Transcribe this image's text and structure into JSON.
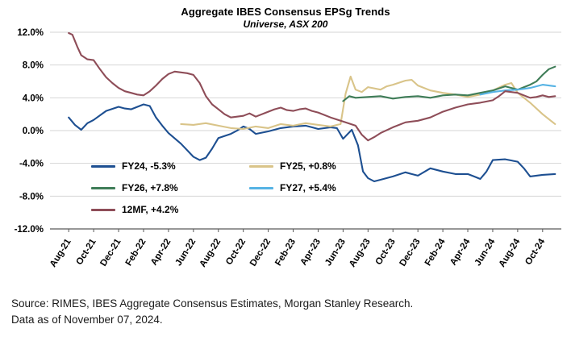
{
  "chart_data": {
    "type": "line",
    "title": "Aggregate IBES Consensus EPSg Trends",
    "subtitle": "Universe, ASX 200",
    "x_unit": "months since Aug-2021",
    "x_tick_positions": [
      0,
      2,
      4,
      6,
      8,
      10,
      12,
      14,
      16,
      18,
      20,
      22,
      24,
      26,
      28,
      30,
      32,
      34,
      36,
      38
    ],
    "x_tick_labels": [
      "Aug-21",
      "Oct-21",
      "Dec-21",
      "Feb-22",
      "Apr-22",
      "Jun-22",
      "Aug-22",
      "Oct-22",
      "Dec-22",
      "Feb-23",
      "Apr-23",
      "Jun-23",
      "Aug-23",
      "Oct-23",
      "Dec-23",
      "Feb-24",
      "Apr-24",
      "Jun-24",
      "Aug-24",
      "Oct-24"
    ],
    "ylim": [
      -12,
      12
    ],
    "y_ticks": [
      12,
      8,
      4,
      0,
      -4,
      -8,
      -12
    ],
    "y_tick_labels": [
      "12.0%",
      "8.0%",
      "4.0%",
      "0.0%",
      "-4.0%",
      "-8.0%",
      "-12.0%"
    ],
    "grid": "horizontal gridlines, light gray",
    "legend_position": "inside plot, lower-left, two columns",
    "series": [
      {
        "name": "FY24",
        "legend_label": "FY24, -5.3%",
        "last_value_pct": -5.3,
        "color": "#1d4f91",
        "x": [
          0,
          0.5,
          1,
          1.5,
          2,
          3,
          4,
          4.5,
          5,
          6,
          6.5,
          7,
          7.5,
          8,
          9,
          10,
          10.5,
          11,
          11.5,
          12,
          13,
          13.5,
          14,
          14.5,
          15,
          16,
          17,
          18,
          19,
          19.5,
          20,
          21,
          21.5,
          22,
          22.7,
          23.2,
          23.6,
          24,
          24.5,
          25,
          26,
          27,
          27.5,
          28,
          29,
          30,
          31,
          32,
          32.5,
          33,
          33.5,
          34,
          35,
          36,
          36.5,
          37,
          38,
          39
        ],
        "y": [
          1.6,
          0.7,
          0.1,
          0.9,
          1.3,
          2.4,
          2.9,
          2.7,
          2.6,
          3.2,
          3.0,
          1.6,
          0.6,
          -0.3,
          -1.6,
          -3.2,
          -3.6,
          -3.3,
          -2.2,
          -0.9,
          -0.4,
          0.0,
          0.5,
          0.2,
          -0.4,
          -0.1,
          0.3,
          0.5,
          0.6,
          0.4,
          0.2,
          0.4,
          0.3,
          -1.0,
          0.1,
          -1.8,
          -5.0,
          -5.8,
          -6.2,
          -6.0,
          -5.6,
          -5.1,
          -5.3,
          -5.5,
          -4.6,
          -5.0,
          -5.3,
          -5.3,
          -5.6,
          -5.9,
          -5.0,
          -3.6,
          -3.5,
          -3.8,
          -4.6,
          -5.6,
          -5.4,
          -5.3
        ]
      },
      {
        "name": "FY25",
        "legend_label": "FY25, +0.8%",
        "last_value_pct": 0.8,
        "color": "#d9c489",
        "x": [
          9,
          10,
          11,
          12,
          13,
          14,
          15,
          16,
          17,
          18,
          19,
          20,
          21,
          21.8,
          22.2,
          22.6,
          23,
          23.5,
          24,
          25,
          25.5,
          26,
          27,
          27.5,
          28,
          29,
          30,
          31,
          32,
          33,
          34,
          35,
          35.5,
          36,
          37,
          38,
          38.5,
          39
        ],
        "y": [
          0.8,
          0.7,
          0.9,
          0.6,
          0.3,
          0.2,
          0.5,
          0.3,
          0.8,
          0.6,
          0.9,
          0.7,
          0.5,
          0.8,
          4.5,
          6.6,
          5.0,
          4.7,
          5.3,
          5.0,
          5.4,
          5.6,
          6.1,
          6.2,
          5.5,
          4.9,
          4.6,
          4.4,
          4.1,
          4.4,
          4.9,
          5.6,
          5.8,
          4.6,
          3.4,
          2.0,
          1.4,
          0.8
        ]
      },
      {
        "name": "FY26",
        "legend_label": "FY26, +7.8%",
        "last_value_pct": 7.8,
        "color": "#3f7d58",
        "x": [
          22,
          22.5,
          23,
          24,
          25,
          26,
          27,
          28,
          29,
          30,
          31,
          32,
          33,
          34,
          35,
          35.5,
          36,
          37,
          37.5,
          38,
          38.5,
          39
        ],
        "y": [
          3.6,
          4.2,
          4.0,
          4.1,
          4.2,
          3.9,
          4.1,
          4.2,
          4.0,
          4.3,
          4.4,
          4.3,
          4.6,
          4.9,
          5.4,
          5.2,
          5.0,
          5.6,
          6.0,
          6.8,
          7.5,
          7.8
        ]
      },
      {
        "name": "FY27",
        "legend_label": "FY27, +5.4%",
        "last_value_pct": 5.4,
        "color": "#56b3e4",
        "x": [
          33,
          34,
          35,
          36,
          36.5,
          37,
          37.5,
          38,
          38.5,
          39
        ],
        "y": [
          4.4,
          4.7,
          4.9,
          5.0,
          5.1,
          5.2,
          5.4,
          5.6,
          5.5,
          5.4
        ]
      },
      {
        "name": "12MF",
        "legend_label": "12MF, +4.2%",
        "last_value_pct": 4.2,
        "color": "#8e4d58",
        "x": [
          0,
          0.3,
          0.7,
          1,
          1.5,
          2,
          2.5,
          3,
          3.5,
          4,
          4.5,
          5,
          5.5,
          6,
          6.5,
          7,
          7.5,
          8,
          8.5,
          9,
          9.5,
          10,
          10.5,
          11,
          11.5,
          12,
          12.5,
          13,
          14,
          14.5,
          15,
          16,
          16.5,
          17,
          17.5,
          18,
          18.5,
          19,
          19.5,
          20,
          21,
          22,
          23,
          23.5,
          24,
          24.5,
          25,
          26,
          27,
          28,
          29,
          30,
          31,
          32,
          33,
          34,
          34.5,
          35,
          35.5,
          36,
          36.5,
          37,
          37.5,
          38,
          38.5,
          39
        ],
        "y": [
          11.9,
          11.7,
          10.2,
          9.2,
          8.7,
          8.6,
          7.5,
          6.5,
          5.8,
          5.2,
          4.8,
          4.6,
          4.4,
          4.3,
          4.8,
          5.5,
          6.3,
          6.9,
          7.2,
          7.1,
          7.0,
          6.8,
          5.8,
          4.2,
          3.2,
          2.6,
          2.0,
          1.6,
          1.8,
          2.1,
          1.7,
          2.3,
          2.6,
          2.8,
          2.5,
          2.4,
          2.6,
          2.7,
          2.4,
          2.2,
          1.6,
          1.1,
          0.6,
          -0.5,
          -1.2,
          -0.8,
          -0.3,
          0.4,
          1.0,
          1.2,
          1.6,
          2.3,
          2.8,
          3.2,
          3.4,
          3.7,
          4.2,
          4.8,
          4.7,
          4.6,
          4.3,
          4.0,
          4.1,
          4.3,
          4.1,
          4.2
        ]
      }
    ]
  },
  "source": {
    "line1": "Source: RIMES, IBES Aggregate Consensus Estimates, Morgan Stanley Research.",
    "line2": "Data as of November 07, 2024."
  }
}
